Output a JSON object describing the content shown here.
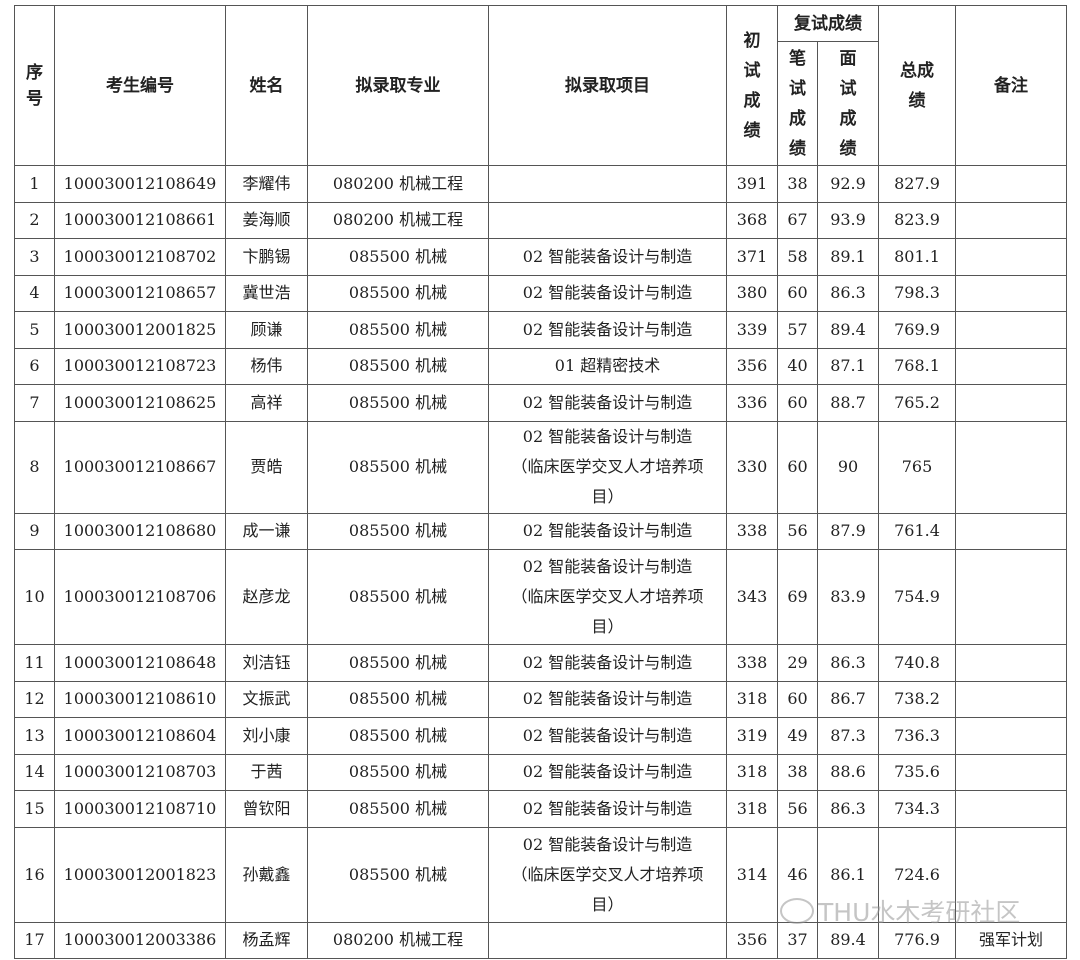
{
  "header": {
    "seq": "序号",
    "exam_id": "考生编号",
    "name": "姓名",
    "major": "拟录取专业",
    "project": "拟录取项目",
    "initial": "初试成绩",
    "retest_group": "复试成绩",
    "written": "笔试成绩",
    "interview": "面试成绩",
    "total": "总成绩",
    "remark": "备注"
  },
  "rows": [
    {
      "seq": "1",
      "exam_id": "100030012108649",
      "name": "李耀伟",
      "major": "080200 机械工程",
      "project": "",
      "initial": "391",
      "written": "38",
      "interview": "92.9",
      "total": "827.9",
      "remark": ""
    },
    {
      "seq": "2",
      "exam_id": "100030012108661",
      "name": "姜海顺",
      "major": "080200 机械工程",
      "project": "",
      "initial": "368",
      "written": "67",
      "interview": "93.9",
      "total": "823.9",
      "remark": ""
    },
    {
      "seq": "3",
      "exam_id": "100030012108702",
      "name": "卞鹏锡",
      "major": "085500 机械",
      "project": "02 智能装备设计与制造",
      "initial": "371",
      "written": "58",
      "interview": "89.1",
      "total": "801.1",
      "remark": ""
    },
    {
      "seq": "4",
      "exam_id": "100030012108657",
      "name": "冀世浩",
      "major": "085500 机械",
      "project": "02 智能装备设计与制造",
      "initial": "380",
      "written": "60",
      "interview": "86.3",
      "total": "798.3",
      "remark": ""
    },
    {
      "seq": "5",
      "exam_id": "100030012001825",
      "name": "顾谦",
      "major": "085500 机械",
      "project": "02 智能装备设计与制造",
      "initial": "339",
      "written": "57",
      "interview": "89.4",
      "total": "769.9",
      "remark": ""
    },
    {
      "seq": "6",
      "exam_id": "100030012108723",
      "name": "杨伟",
      "major": "085500 机械",
      "project": "01 超精密技术",
      "initial": "356",
      "written": "40",
      "interview": "87.1",
      "total": "768.1",
      "remark": ""
    },
    {
      "seq": "7",
      "exam_id": "100030012108625",
      "name": "高祥",
      "major": "085500 机械",
      "project": "02 智能装备设计与制造",
      "initial": "336",
      "written": "60",
      "interview": "88.7",
      "total": "765.2",
      "remark": ""
    },
    {
      "seq": "8",
      "exam_id": "100030012108667",
      "name": "贾皓",
      "major": "085500 机械",
      "project": "02 智能装备设计与制造（临床医学交叉人才培养项目）",
      "initial": "330",
      "written": "60",
      "interview": "90",
      "total": "765",
      "remark": ""
    },
    {
      "seq": "9",
      "exam_id": "100030012108680",
      "name": "成一谦",
      "major": "085500 机械",
      "project": "02 智能装备设计与制造",
      "initial": "338",
      "written": "56",
      "interview": "87.9",
      "total": "761.4",
      "remark": ""
    },
    {
      "seq": "10",
      "exam_id": "100030012108706",
      "name": "赵彦龙",
      "major": "085500 机械",
      "project": "02 智能装备设计与制造（临床医学交叉人才培养项目）",
      "initial": "343",
      "written": "69",
      "interview": "83.9",
      "total": "754.9",
      "remark": ""
    },
    {
      "seq": "11",
      "exam_id": "100030012108648",
      "name": "刘洁钰",
      "major": "085500 机械",
      "project": "02 智能装备设计与制造",
      "initial": "338",
      "written": "29",
      "interview": "86.3",
      "total": "740.8",
      "remark": ""
    },
    {
      "seq": "12",
      "exam_id": "100030012108610",
      "name": "文振武",
      "major": "085500 机械",
      "project": "02 智能装备设计与制造",
      "initial": "318",
      "written": "60",
      "interview": "86.7",
      "total": "738.2",
      "remark": ""
    },
    {
      "seq": "13",
      "exam_id": "100030012108604",
      "name": "刘小康",
      "major": "085500 机械",
      "project": "02 智能装备设计与制造",
      "initial": "319",
      "written": "49",
      "interview": "87.3",
      "total": "736.3",
      "remark": ""
    },
    {
      "seq": "14",
      "exam_id": "100030012108703",
      "name": "于茜",
      "major": "085500 机械",
      "project": "02 智能装备设计与制造",
      "initial": "318",
      "written": "38",
      "interview": "88.6",
      "total": "735.6",
      "remark": ""
    },
    {
      "seq": "15",
      "exam_id": "100030012108710",
      "name": "曾钦阳",
      "major": "085500 机械",
      "project": "02 智能装备设计与制造",
      "initial": "318",
      "written": "56",
      "interview": "86.3",
      "total": "734.3",
      "remark": ""
    },
    {
      "seq": "16",
      "exam_id": "100030012001823",
      "name": "孙戴鑫",
      "major": "085500 机械",
      "project": "02 智能装备设计与制造（临床医学交叉人才培养项目）",
      "initial": "314",
      "written": "46",
      "interview": "86.1",
      "total": "724.6",
      "remark": ""
    },
    {
      "seq": "17",
      "exam_id": "100030012003386",
      "name": "杨孟辉",
      "major": "080200 机械工程",
      "project": "",
      "initial": "356",
      "written": "37",
      "interview": "89.4",
      "total": "776.9",
      "remark": "强军计划"
    }
  ],
  "watermark": {
    "text": "THU水木考研社区",
    "icon": "wechat-icon"
  }
}
